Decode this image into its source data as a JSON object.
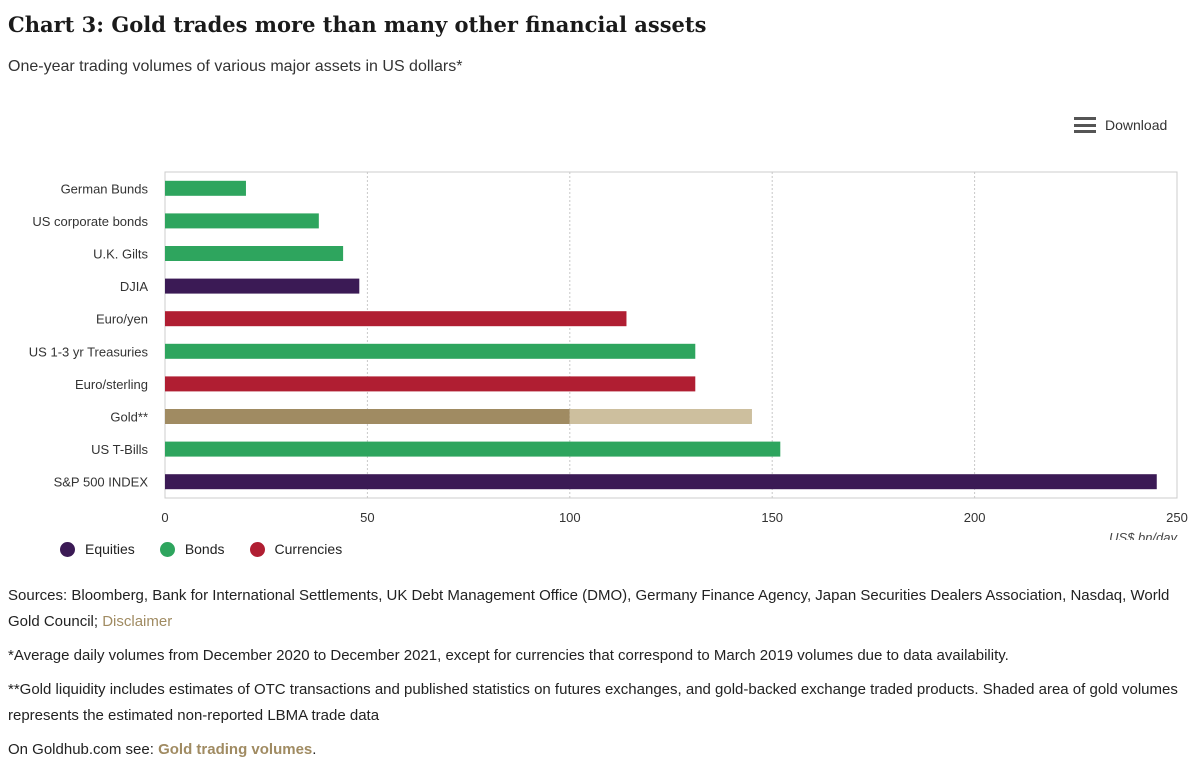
{
  "header": {
    "title": "Chart 3: Gold trades more than many other financial assets",
    "subtitle": "One-year trading volumes of various major assets in US dollars*"
  },
  "toolbar": {
    "download_label": "Download",
    "download_icon": "hamburger-menu-icon"
  },
  "chart_data": {
    "type": "bar",
    "orientation": "horizontal",
    "categories": [
      "German Bunds",
      "US corporate bonds",
      "U.K. Gilts",
      "DJIA",
      "Euro/yen",
      "US 1-3 yr Treasuries",
      "Euro/sterling",
      "Gold**",
      "US T-Bills",
      "S&P 500 INDEX"
    ],
    "values": [
      20,
      38,
      44,
      48,
      114,
      131,
      131,
      145,
      152,
      245
    ],
    "asset_class": [
      "Bonds",
      "Bonds",
      "Bonds",
      "Equities",
      "Currencies",
      "Bonds",
      "Currencies",
      "Gold",
      "Bonds",
      "Equities"
    ],
    "gold_stacked": {
      "category": "Gold**",
      "reported": 100,
      "shaded_estimate": 45
    },
    "xlim": [
      0,
      250
    ],
    "xticks": [
      "0",
      "50",
      "100",
      "150",
      "200",
      "250"
    ],
    "xlabel": "US$ bn/day",
    "grid": "vertical dotted",
    "legend": [
      {
        "label": "Equities",
        "color": "#3b1a55"
      },
      {
        "label": "Bonds",
        "color": "#2ea55e"
      },
      {
        "label": "Currencies",
        "color": "#b01e32"
      }
    ],
    "colors": {
      "Equities": "#3b1a55",
      "Bonds": "#2ea55e",
      "Currencies": "#b01e32",
      "Gold": "#a08b62",
      "Gold_shaded": "#cdbf9e"
    }
  },
  "notes": {
    "sources": "Sources: Bloomberg, Bank for International Settlements, UK Debt Management Office (DMO), Germany Finance Agency, Japan Securities Dealers Association, Nasdaq, World Gold Council; ",
    "disclaimer_link": "Disclaimer",
    "footnote1": "*Average daily volumes from December 2020 to December 2021, except for currencies that correspond to March 2019 volumes due to data availability.",
    "footnote2": "**Gold liquidity includes estimates of OTC transactions and published statistics on futures exchanges, and gold-backed exchange traded products. Shaded area of gold volumes represents the estimated non-reported LBMA trade data",
    "goldhub_prefix": "On Goldhub.com see: ",
    "goldhub_link": "Gold trading volumes",
    "goldhub_suffix": "."
  }
}
